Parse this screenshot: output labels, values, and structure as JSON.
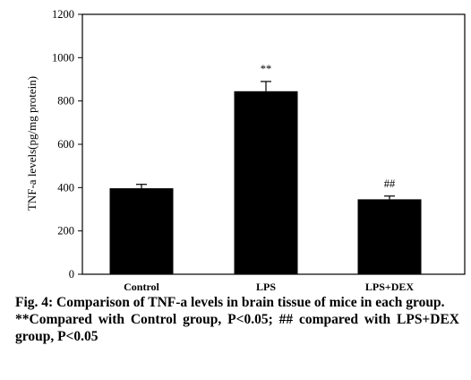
{
  "chart_data": {
    "type": "bar",
    "categories": [
      "Control",
      "LPS",
      "LPS+DEX"
    ],
    "values": [
      397,
      845,
      346
    ],
    "errors": [
      18,
      45,
      15
    ],
    "significance": [
      "",
      "**",
      "##"
    ],
    "ylabel": "TNF-a levels(pg/mg protein)",
    "xlabel": "",
    "ylim": [
      0,
      1200
    ],
    "yticks": [
      0,
      200,
      400,
      600,
      800,
      1000,
      1200
    ],
    "grid": false,
    "bar_color": "#000000"
  },
  "caption": {
    "figure_title": "Fig. 4: Comparison of TNF-a levels in brain tissue of mice in each group.",
    "footnote": "**Compared with Control group, P<0.05; ## compared with LPS+DEX group, P<0.05"
  }
}
